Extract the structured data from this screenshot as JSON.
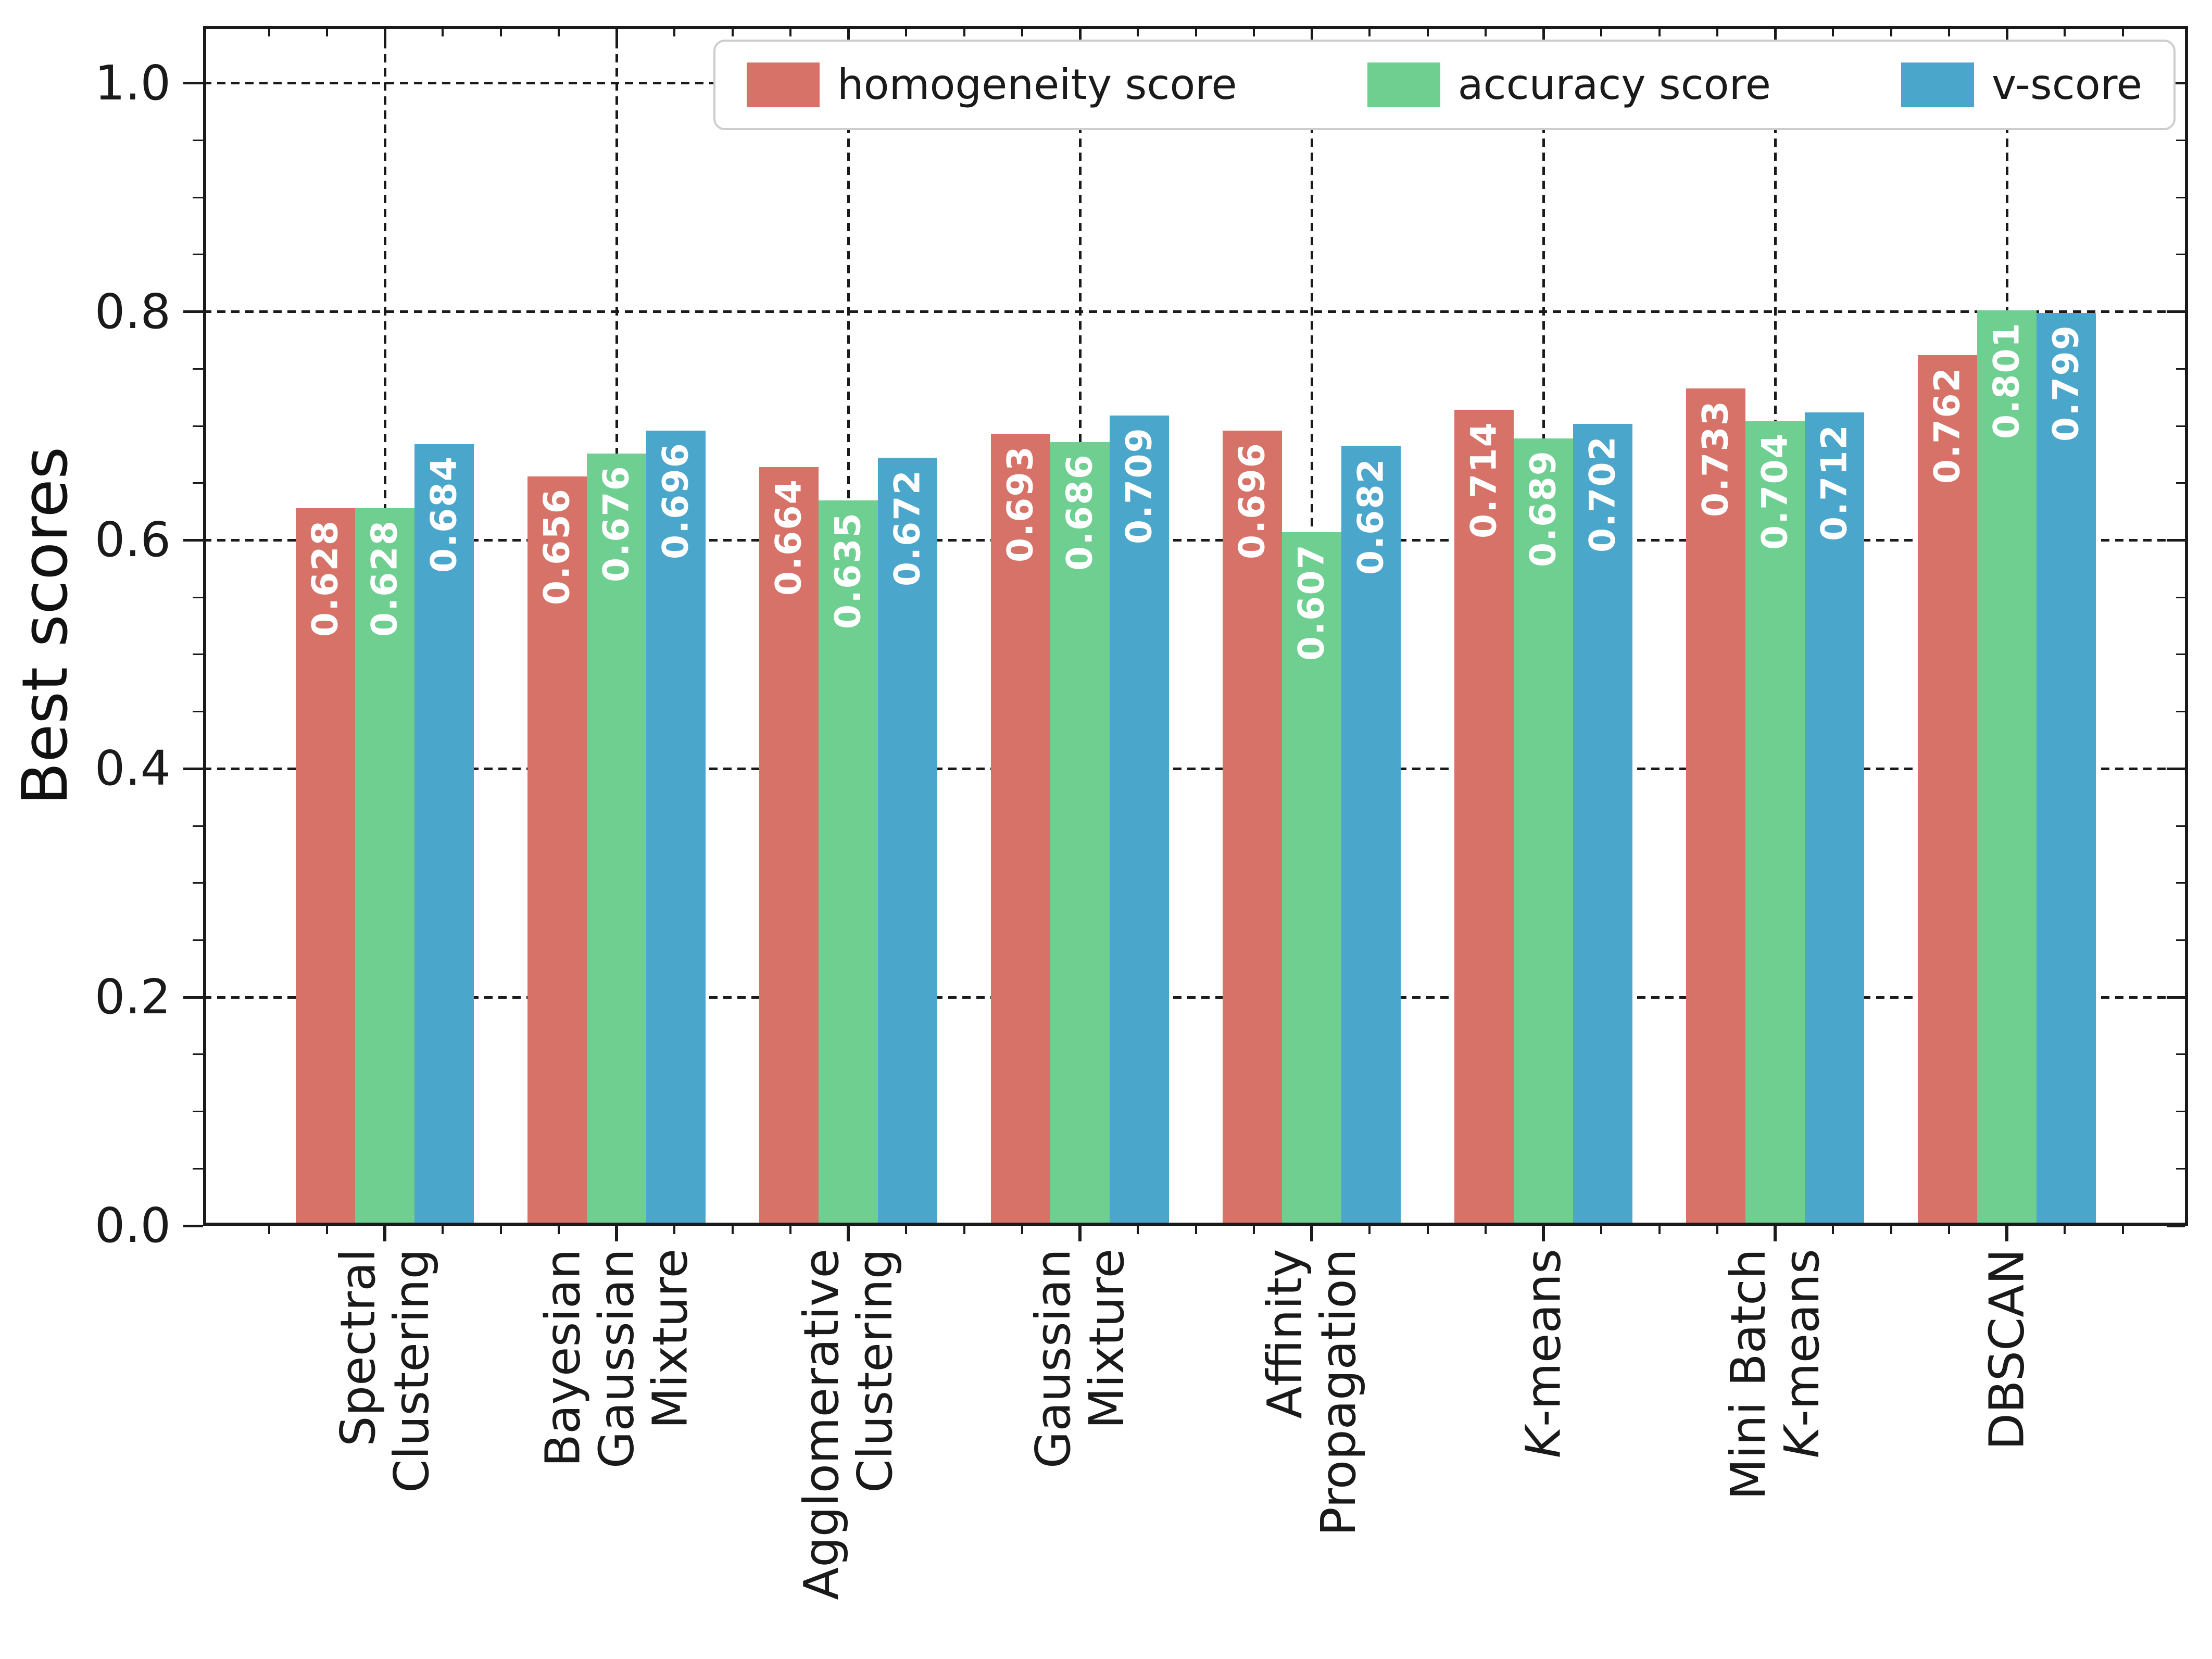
{
  "chart_data": {
    "type": "bar",
    "title": "",
    "xlabel": "",
    "ylabel": "Best scores",
    "ylim": [
      0,
      1.05
    ],
    "yticks": [
      0.0,
      0.2,
      0.4,
      0.6,
      0.8,
      1.0
    ],
    "ytick_labels": [
      "0.0",
      "0.2",
      "0.4",
      "0.6",
      "0.8",
      "1.0"
    ],
    "y_minor_step": 0.05,
    "grid": true,
    "grid_style": "dashed-black",
    "legend_position": "upper right",
    "value_labels_shown": true,
    "value_label_rotation_deg": 90,
    "value_label_color": "#ffffff",
    "background_color": "#ffffff",
    "categories": [
      {
        "name": "Spectral Clustering",
        "lines": [
          [
            {
              "t": "Spectral"
            }
          ],
          [
            {
              "t": "Clustering"
            }
          ]
        ]
      },
      {
        "name": "Bayesian Gaussian Mixture",
        "lines": [
          [
            {
              "t": "Bayesian"
            }
          ],
          [
            {
              "t": "Gaussian"
            }
          ],
          [
            {
              "t": "Mixture"
            }
          ]
        ]
      },
      {
        "name": "Agglomerative Clustering",
        "lines": [
          [
            {
              "t": "Agglomerative"
            }
          ],
          [
            {
              "t": "Clustering"
            }
          ]
        ]
      },
      {
        "name": "Gaussian Mixture",
        "lines": [
          [
            {
              "t": "Gaussian"
            }
          ],
          [
            {
              "t": "Mixture"
            }
          ]
        ]
      },
      {
        "name": "Affinity Propagation",
        "lines": [
          [
            {
              "t": "Affinity"
            }
          ],
          [
            {
              "t": "Propagation"
            }
          ]
        ]
      },
      {
        "name": "K-means",
        "lines": [
          [
            {
              "t": "K",
              "i": true
            },
            {
              "t": "-means"
            }
          ]
        ]
      },
      {
        "name": "Mini Batch K-means",
        "lines": [
          [
            {
              "t": "Mini Batch"
            }
          ],
          [
            {
              "t": "K",
              "i": true
            },
            {
              "t": "-means"
            }
          ]
        ]
      },
      {
        "name": "DBSCAN",
        "lines": [
          [
            {
              "t": "DBSCAN"
            }
          ]
        ]
      }
    ],
    "series": [
      {
        "name": "homogeneity score",
        "color": "#d77269",
        "values": [
          0.628,
          0.656,
          0.664,
          0.693,
          0.696,
          0.714,
          0.733,
          0.762
        ]
      },
      {
        "name": "accuracy score",
        "color": "#6ecf91",
        "values": [
          0.628,
          0.676,
          0.635,
          0.686,
          0.607,
          0.689,
          0.704,
          0.801
        ]
      },
      {
        "name": "v-score",
        "color": "#4ba6cc",
        "values": [
          0.684,
          0.696,
          0.672,
          0.709,
          0.682,
          0.702,
          0.712,
          0.799
        ]
      }
    ]
  }
}
